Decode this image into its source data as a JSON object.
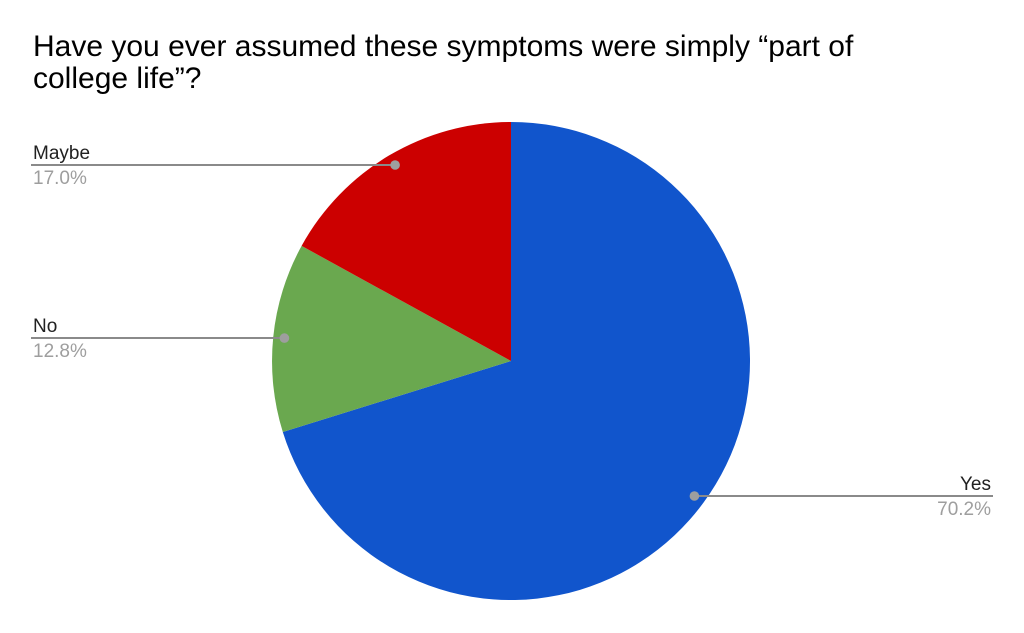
{
  "title": {
    "text": "Have you ever assumed these symptoms were simply “part of college life”?",
    "line1": "Have you ever assumed these symptoms were simply “part of",
    "line2": "college life”?"
  },
  "chart_data": {
    "type": "pie",
    "title": "Have you ever assumed these symptoms were simply “part of college life”?",
    "unit": "percent",
    "total": 100.0,
    "start_angle_deg": 0,
    "direction": "clockwise",
    "legend_position": "outside-callout-labels",
    "slices": [
      {
        "label": "Yes",
        "value": 70.2,
        "display": "70.2%",
        "color": "#1155cc",
        "callout_side": "right"
      },
      {
        "label": "No",
        "value": 12.8,
        "display": "12.8%",
        "color": "#6aa84f",
        "callout_side": "left"
      },
      {
        "label": "Maybe",
        "value": 17.0,
        "display": "17.0%",
        "color": "#cc0000",
        "callout_side": "left"
      }
    ]
  },
  "style": {
    "background_color": "#ffffff",
    "title_color": "#000000",
    "label_color": "#212121",
    "percent_color": "#9e9e9e",
    "leader_line_color": "#8a8a8a",
    "leader_dot_color": "#9e9e9e"
  }
}
